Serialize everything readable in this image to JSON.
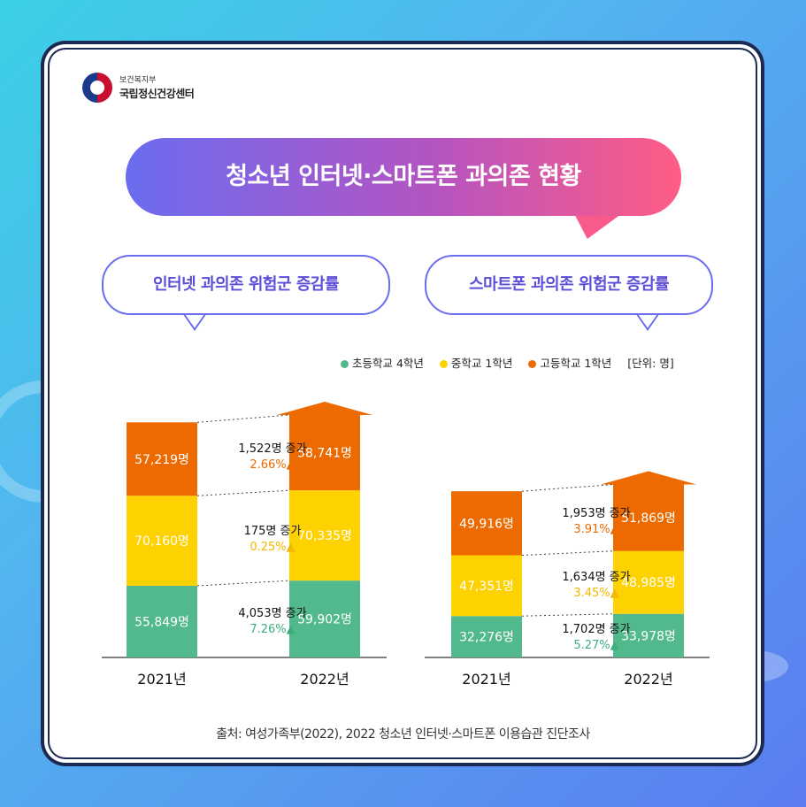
{
  "header": {
    "ministry": "보건복지부",
    "center": "국립정신건강센터"
  },
  "title": "청소년 인터넷·스마트폰 과의존 현황",
  "subtitles": {
    "internet": "인터넷 과의존 위험군 증감률",
    "smartphone": "스마트폰 과의존 위험군 증감률"
  },
  "legend": {
    "elementary": "초등학교 4학년",
    "middle": "중학교 1학년",
    "high": "고등학교 1학년",
    "unit": "[단위: 명]"
  },
  "colors": {
    "elementary": "#52b98c",
    "middle": "#fed200",
    "high": "#ec6a00",
    "title_gradient_start": "#6b6cf0",
    "title_gradient_end": "#ff5c84"
  },
  "source": "출처: 여성가족부(2022), 2022 청소년 인터넷·스마트폰 이용습관 진단조사",
  "chart_data": [
    {
      "type": "bar",
      "name": "인터넷 과의존 위험군 증감률",
      "stacked": true,
      "categories": [
        "2021년",
        "2022년"
      ],
      "series": [
        {
          "name": "초등학교 4학년",
          "values": [
            55849,
            59902
          ],
          "labels": [
            "55,849명",
            "59,902명"
          ],
          "change": "4,053명 증가",
          "rate": "7.26%▲"
        },
        {
          "name": "중학교 1학년",
          "values": [
            70160,
            70335
          ],
          "labels": [
            "70,160명",
            "70,335명"
          ],
          "change": "175명 증가",
          "rate": "0.25%▲"
        },
        {
          "name": "고등학교 1학년",
          "values": [
            57219,
            58741
          ],
          "labels": [
            "57,219명",
            "58,741명"
          ],
          "change": "1,522명 증가",
          "rate": "2.66%▲"
        }
      ]
    },
    {
      "type": "bar",
      "name": "스마트폰 과의존 위험군 증감률",
      "stacked": true,
      "categories": [
        "2021년",
        "2022년"
      ],
      "series": [
        {
          "name": "초등학교 4학년",
          "values": [
            32276,
            33978
          ],
          "labels": [
            "32,276명",
            "33,978명"
          ],
          "change": "1,702명 증가",
          "rate": "5.27%▲"
        },
        {
          "name": "중학교 1학년",
          "values": [
            47351,
            48985
          ],
          "labels": [
            "47,351명",
            "48,985명"
          ],
          "change": "1,634명 증가",
          "rate": "3.45%▲"
        },
        {
          "name": "고등학교 1학년",
          "values": [
            49916,
            51869
          ],
          "labels": [
            "49,916명",
            "51,869명"
          ],
          "change": "1,953명 증가",
          "rate": "3.91%▲"
        }
      ]
    }
  ]
}
